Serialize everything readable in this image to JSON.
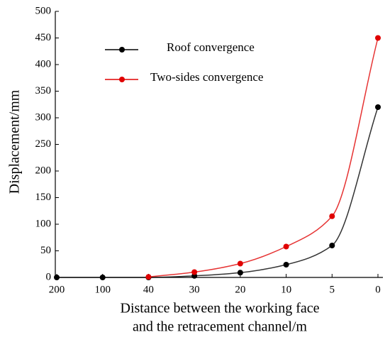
{
  "chart_data": {
    "type": "line",
    "xlabel": [
      "Distance between the working face",
      "and the retracement channel/m"
    ],
    "ylabel": "Displacement/mm",
    "categories": [
      "200",
      "100",
      "40",
      "30",
      "20",
      "10",
      "5",
      "0"
    ],
    "series": [
      {
        "name": "Roof convergence",
        "color": "#000000",
        "values": [
          0,
          0,
          0,
          3,
          9,
          24,
          60,
          320
        ]
      },
      {
        "name": "Two-sides convergence",
        "color": "#e00000",
        "values": [
          null,
          null,
          1,
          10,
          26,
          58,
          115,
          450
        ]
      }
    ],
    "ylim": [
      0,
      500
    ],
    "yticks": [
      0,
      50,
      100,
      150,
      200,
      250,
      300,
      350,
      400,
      450,
      500
    ]
  }
}
